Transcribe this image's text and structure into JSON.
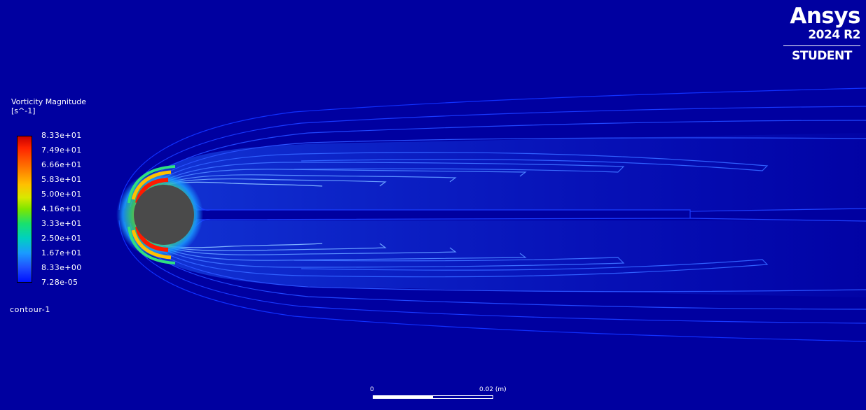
{
  "brand": {
    "name": "Ansys",
    "version": "2024 R2",
    "edition": "STUDENT"
  },
  "legend": {
    "title": "Vorticity Magnitude",
    "unit": "[s^-1]",
    "ticks": [
      "8.33e+01",
      "7.49e+01",
      "6.66e+01",
      "5.83e+01",
      "5.00e+01",
      "4.16e+01",
      "3.33e+01",
      "2.50e+01",
      "1.67e+01",
      "8.33e+00",
      "7.28e-05"
    ],
    "colormap": [
      "#c80000",
      "#ff7a00",
      "#ffc000",
      "#7de600",
      "#00d0c0",
      "#1a9bff",
      "#0010ff"
    ]
  },
  "contour_name": "contour-1",
  "scale": {
    "start_label": "0",
    "end_label": "0.02 (m)"
  },
  "colors": {
    "background": "#0000a0",
    "cylinder": "#4a4a4a",
    "contour_line": "#1f3cff"
  }
}
